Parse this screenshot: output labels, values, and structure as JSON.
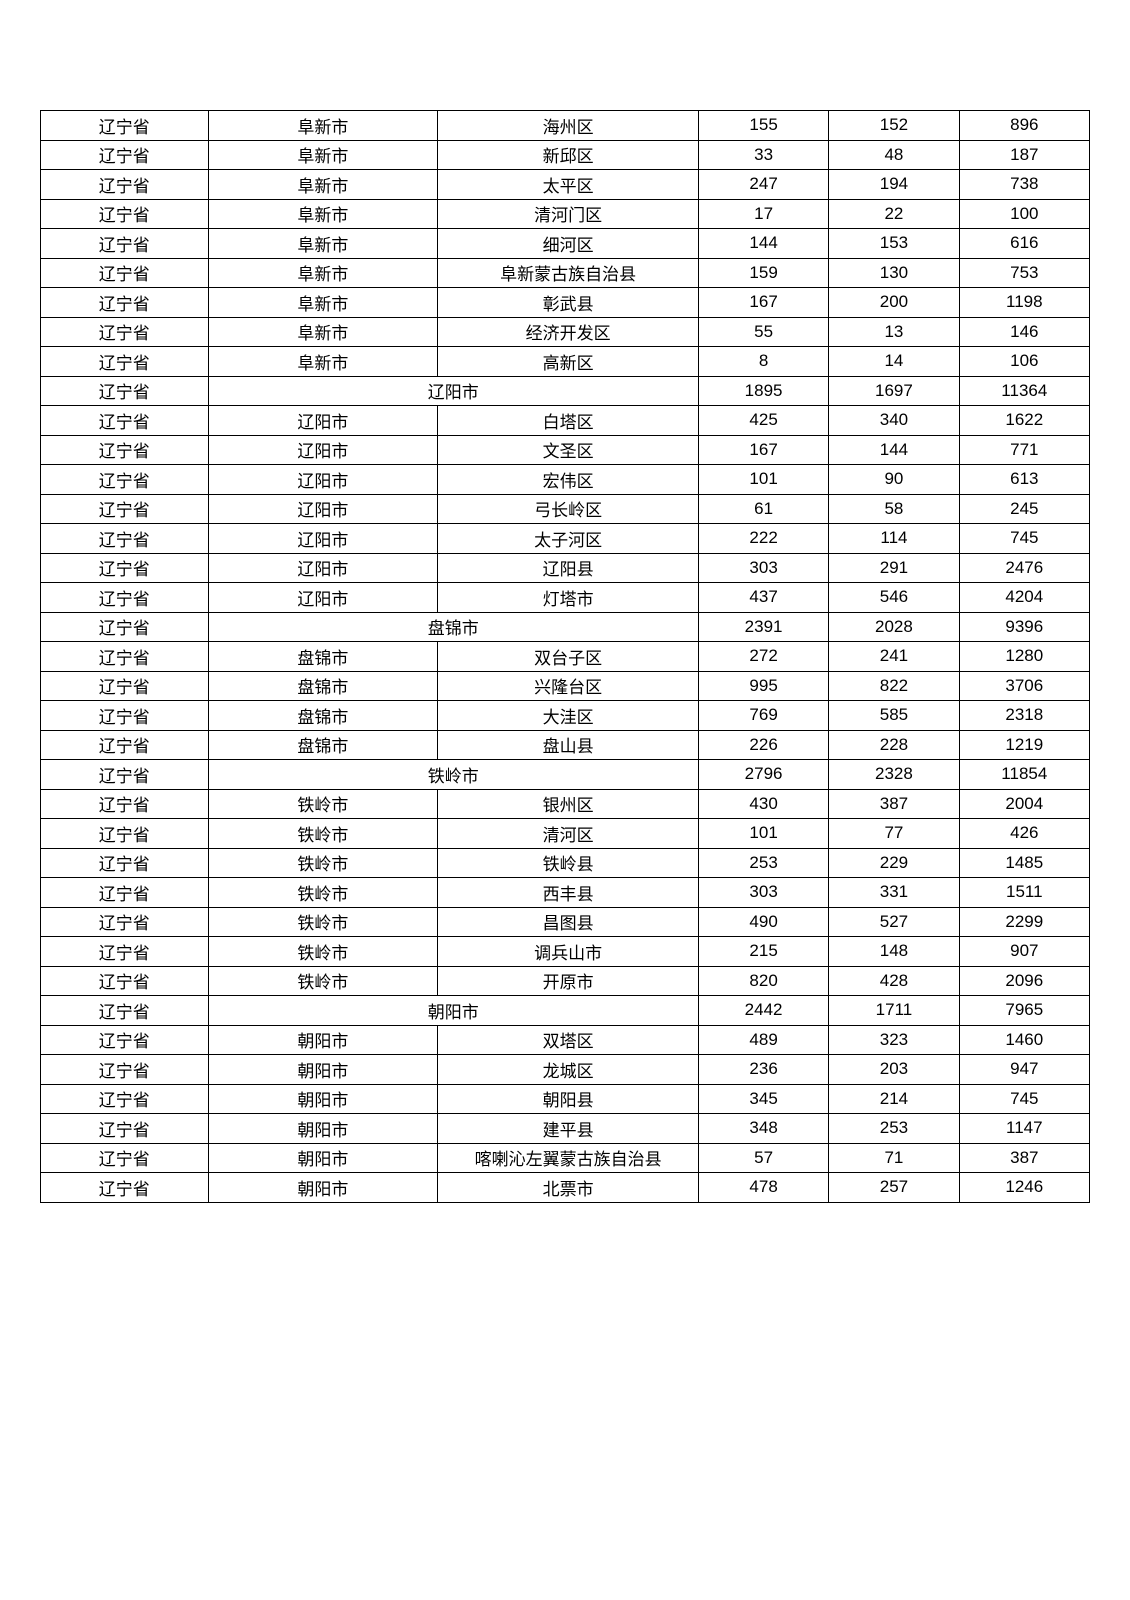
{
  "table": {
    "background_color": "#ffffff",
    "border_color": "#000000",
    "text_color": "#000000",
    "font_size": 17,
    "row_height": 29.5,
    "columns": [
      {
        "key": "province",
        "width_pct": 13.5,
        "align": "center"
      },
      {
        "key": "city",
        "width_pct": 18.5,
        "align": "center"
      },
      {
        "key": "district",
        "width_pct": 21.0,
        "align": "center"
      },
      {
        "key": "v1",
        "width_pct": 10.5,
        "align": "center"
      },
      {
        "key": "v2",
        "width_pct": 10.5,
        "align": "center"
      },
      {
        "key": "v3",
        "width_pct": 10.5,
        "align": "center"
      }
    ],
    "rows": [
      {
        "type": "detail",
        "province": "辽宁省",
        "city": "阜新市",
        "district": "海州区",
        "v1": 155,
        "v2": 152,
        "v3": 896
      },
      {
        "type": "detail",
        "province": "辽宁省",
        "city": "阜新市",
        "district": "新邱区",
        "v1": 33,
        "v2": 48,
        "v3": 187
      },
      {
        "type": "detail",
        "province": "辽宁省",
        "city": "阜新市",
        "district": "太平区",
        "v1": 247,
        "v2": 194,
        "v3": 738
      },
      {
        "type": "detail",
        "province": "辽宁省",
        "city": "阜新市",
        "district": "清河门区",
        "v1": 17,
        "v2": 22,
        "v3": 100
      },
      {
        "type": "detail",
        "province": "辽宁省",
        "city": "阜新市",
        "district": "细河区",
        "v1": 144,
        "v2": 153,
        "v3": 616
      },
      {
        "type": "detail",
        "province": "辽宁省",
        "city": "阜新市",
        "district": "阜新蒙古族自治县",
        "v1": 159,
        "v2": 130,
        "v3": 753
      },
      {
        "type": "detail",
        "province": "辽宁省",
        "city": "阜新市",
        "district": "彰武县",
        "v1": 167,
        "v2": 200,
        "v3": 1198
      },
      {
        "type": "detail",
        "province": "辽宁省",
        "city": "阜新市",
        "district": "经济开发区",
        "v1": 55,
        "v2": 13,
        "v3": 146
      },
      {
        "type": "detail",
        "province": "辽宁省",
        "city": "阜新市",
        "district": "高新区",
        "v1": 8,
        "v2": 14,
        "v3": 106
      },
      {
        "type": "summary",
        "province": "辽宁省",
        "city_label": "辽阳市",
        "v1": 1895,
        "v2": 1697,
        "v3": 11364
      },
      {
        "type": "detail",
        "province": "辽宁省",
        "city": "辽阳市",
        "district": "白塔区",
        "v1": 425,
        "v2": 340,
        "v3": 1622
      },
      {
        "type": "detail",
        "province": "辽宁省",
        "city": "辽阳市",
        "district": "文圣区",
        "v1": 167,
        "v2": 144,
        "v3": 771
      },
      {
        "type": "detail",
        "province": "辽宁省",
        "city": "辽阳市",
        "district": "宏伟区",
        "v1": 101,
        "v2": 90,
        "v3": 613
      },
      {
        "type": "detail",
        "province": "辽宁省",
        "city": "辽阳市",
        "district": "弓长岭区",
        "v1": 61,
        "v2": 58,
        "v3": 245
      },
      {
        "type": "detail",
        "province": "辽宁省",
        "city": "辽阳市",
        "district": "太子河区",
        "v1": 222,
        "v2": 114,
        "v3": 745
      },
      {
        "type": "detail",
        "province": "辽宁省",
        "city": "辽阳市",
        "district": "辽阳县",
        "v1": 303,
        "v2": 291,
        "v3": 2476
      },
      {
        "type": "detail",
        "province": "辽宁省",
        "city": "辽阳市",
        "district": "灯塔市",
        "v1": 437,
        "v2": 546,
        "v3": 4204
      },
      {
        "type": "summary",
        "province": "辽宁省",
        "city_label": "盘锦市",
        "v1": 2391,
        "v2": 2028,
        "v3": 9396
      },
      {
        "type": "detail",
        "province": "辽宁省",
        "city": "盘锦市",
        "district": "双台子区",
        "v1": 272,
        "v2": 241,
        "v3": 1280
      },
      {
        "type": "detail",
        "province": "辽宁省",
        "city": "盘锦市",
        "district": "兴隆台区",
        "v1": 995,
        "v2": 822,
        "v3": 3706
      },
      {
        "type": "detail",
        "province": "辽宁省",
        "city": "盘锦市",
        "district": "大洼区",
        "v1": 769,
        "v2": 585,
        "v3": 2318
      },
      {
        "type": "detail",
        "province": "辽宁省",
        "city": "盘锦市",
        "district": "盘山县",
        "v1": 226,
        "v2": 228,
        "v3": 1219
      },
      {
        "type": "summary",
        "province": "辽宁省",
        "city_label": "铁岭市",
        "v1": 2796,
        "v2": 2328,
        "v3": 11854
      },
      {
        "type": "detail",
        "province": "辽宁省",
        "city": "铁岭市",
        "district": "银州区",
        "v1": 430,
        "v2": 387,
        "v3": 2004
      },
      {
        "type": "detail",
        "province": "辽宁省",
        "city": "铁岭市",
        "district": "清河区",
        "v1": 101,
        "v2": 77,
        "v3": 426
      },
      {
        "type": "detail",
        "province": "辽宁省",
        "city": "铁岭市",
        "district": "铁岭县",
        "v1": 253,
        "v2": 229,
        "v3": 1485
      },
      {
        "type": "detail",
        "province": "辽宁省",
        "city": "铁岭市",
        "district": "西丰县",
        "v1": 303,
        "v2": 331,
        "v3": 1511
      },
      {
        "type": "detail",
        "province": "辽宁省",
        "city": "铁岭市",
        "district": "昌图县",
        "v1": 490,
        "v2": 527,
        "v3": 2299
      },
      {
        "type": "detail",
        "province": "辽宁省",
        "city": "铁岭市",
        "district": "调兵山市",
        "v1": 215,
        "v2": 148,
        "v3": 907
      },
      {
        "type": "detail",
        "province": "辽宁省",
        "city": "铁岭市",
        "district": "开原市",
        "v1": 820,
        "v2": 428,
        "v3": 2096
      },
      {
        "type": "summary",
        "province": "辽宁省",
        "city_label": "朝阳市",
        "v1": 2442,
        "v2": 1711,
        "v3": 7965
      },
      {
        "type": "detail",
        "province": "辽宁省",
        "city": "朝阳市",
        "district": "双塔区",
        "v1": 489,
        "v2": 323,
        "v3": 1460
      },
      {
        "type": "detail",
        "province": "辽宁省",
        "city": "朝阳市",
        "district": "龙城区",
        "v1": 236,
        "v2": 203,
        "v3": 947
      },
      {
        "type": "detail",
        "province": "辽宁省",
        "city": "朝阳市",
        "district": "朝阳县",
        "v1": 345,
        "v2": 214,
        "v3": 745
      },
      {
        "type": "detail",
        "province": "辽宁省",
        "city": "朝阳市",
        "district": "建平县",
        "v1": 348,
        "v2": 253,
        "v3": 1147
      },
      {
        "type": "detail",
        "province": "辽宁省",
        "city": "朝阳市",
        "district": "喀喇沁左翼蒙古族自治县",
        "v1": 57,
        "v2": 71,
        "v3": 387
      },
      {
        "type": "detail",
        "province": "辽宁省",
        "city": "朝阳市",
        "district": "北票市",
        "v1": 478,
        "v2": 257,
        "v3": 1246
      }
    ]
  }
}
